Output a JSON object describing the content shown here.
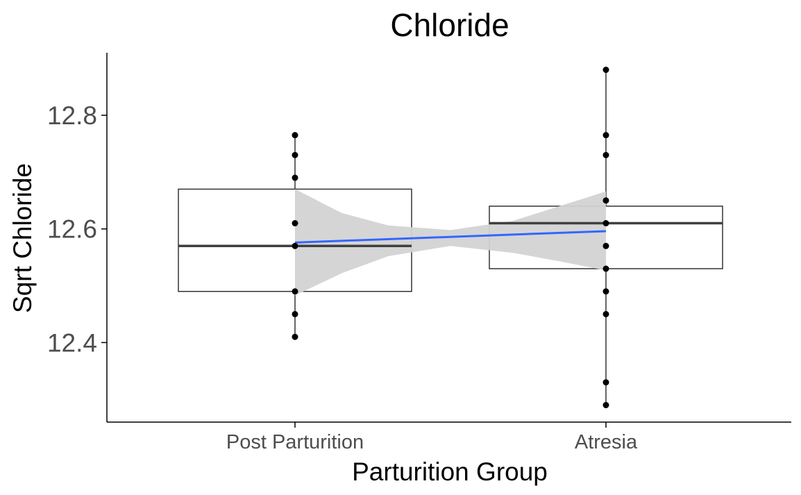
{
  "chart_data": {
    "type": "boxplot",
    "title": "Chloride",
    "xlabel": "Parturition Group",
    "ylabel": "Sqrt Chloride",
    "categories": [
      "Post Parturition",
      "Atresia"
    ],
    "ylim": [
      12.26,
      12.91
    ],
    "yticks": [
      12.4,
      12.6,
      12.8
    ],
    "ytick_labels": [
      "12.4",
      "12.6",
      "12.8"
    ],
    "grid": false,
    "boxes": [
      {
        "category": "Post Parturition",
        "q1": 12.49,
        "median": 12.57,
        "q3": 12.67
      },
      {
        "category": "Atresia",
        "q1": 12.53,
        "median": 12.61,
        "q3": 12.64
      }
    ],
    "whiskers": [
      {
        "category": "Post Parturition",
        "low": 12.41,
        "high": 12.765
      },
      {
        "category": "Atresia",
        "low": 12.29,
        "high": 12.88
      }
    ],
    "points": [
      {
        "category": "Post Parturition",
        "values": [
          12.41,
          12.45,
          12.49,
          12.57,
          12.61,
          12.69,
          12.73,
          12.765
        ]
      },
      {
        "category": "Atresia",
        "values": [
          12.29,
          12.33,
          12.45,
          12.49,
          12.53,
          12.57,
          12.61,
          12.65,
          12.73,
          12.765,
          12.88
        ]
      }
    ],
    "trend_line": {
      "start": 12.576,
      "end": 12.596,
      "color": "#3366ff"
    },
    "confidence_band": {
      "x": [
        1.0,
        1.15,
        1.3,
        1.5,
        1.7,
        1.85,
        2.0
      ],
      "lower": [
        12.483,
        12.522,
        12.552,
        12.57,
        12.558,
        12.543,
        12.527
      ],
      "upper": [
        12.67,
        12.628,
        12.606,
        12.598,
        12.614,
        12.64,
        12.666
      ],
      "color": "#d3d3d3"
    },
    "colors": {
      "box_edge": "#333333",
      "median": "#3f3f3f",
      "points": "#000000",
      "axis": "#000000"
    }
  }
}
